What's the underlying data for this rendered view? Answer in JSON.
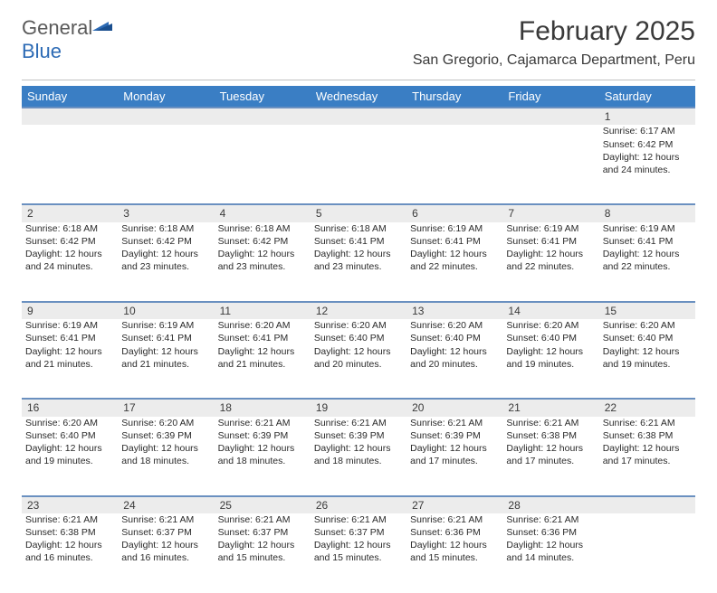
{
  "logo": {
    "text_general": "General",
    "text_blue": "Blue"
  },
  "title": "February 2025",
  "location": "San Gregorio, Cajamarca Department, Peru",
  "colors": {
    "header_bg": "#3a7ec4",
    "header_text": "#ffffff",
    "daynum_bg": "#ececec",
    "daynum_border": "#6a90c0",
    "body_text": "#2a2a2a",
    "logo_gray": "#5a5a5a",
    "logo_blue": "#2d6bb5"
  },
  "day_names": [
    "Sunday",
    "Monday",
    "Tuesday",
    "Wednesday",
    "Thursday",
    "Friday",
    "Saturday"
  ],
  "grid": [
    [
      null,
      null,
      null,
      null,
      null,
      null,
      {
        "n": "1",
        "sr": "Sunrise: 6:17 AM",
        "ss": "Sunset: 6:42 PM",
        "d1": "Daylight: 12 hours",
        "d2": "and 24 minutes."
      }
    ],
    [
      {
        "n": "2",
        "sr": "Sunrise: 6:18 AM",
        "ss": "Sunset: 6:42 PM",
        "d1": "Daylight: 12 hours",
        "d2": "and 24 minutes."
      },
      {
        "n": "3",
        "sr": "Sunrise: 6:18 AM",
        "ss": "Sunset: 6:42 PM",
        "d1": "Daylight: 12 hours",
        "d2": "and 23 minutes."
      },
      {
        "n": "4",
        "sr": "Sunrise: 6:18 AM",
        "ss": "Sunset: 6:42 PM",
        "d1": "Daylight: 12 hours",
        "d2": "and 23 minutes."
      },
      {
        "n": "5",
        "sr": "Sunrise: 6:18 AM",
        "ss": "Sunset: 6:41 PM",
        "d1": "Daylight: 12 hours",
        "d2": "and 23 minutes."
      },
      {
        "n": "6",
        "sr": "Sunrise: 6:19 AM",
        "ss": "Sunset: 6:41 PM",
        "d1": "Daylight: 12 hours",
        "d2": "and 22 minutes."
      },
      {
        "n": "7",
        "sr": "Sunrise: 6:19 AM",
        "ss": "Sunset: 6:41 PM",
        "d1": "Daylight: 12 hours",
        "d2": "and 22 minutes."
      },
      {
        "n": "8",
        "sr": "Sunrise: 6:19 AM",
        "ss": "Sunset: 6:41 PM",
        "d1": "Daylight: 12 hours",
        "d2": "and 22 minutes."
      }
    ],
    [
      {
        "n": "9",
        "sr": "Sunrise: 6:19 AM",
        "ss": "Sunset: 6:41 PM",
        "d1": "Daylight: 12 hours",
        "d2": "and 21 minutes."
      },
      {
        "n": "10",
        "sr": "Sunrise: 6:19 AM",
        "ss": "Sunset: 6:41 PM",
        "d1": "Daylight: 12 hours",
        "d2": "and 21 minutes."
      },
      {
        "n": "11",
        "sr": "Sunrise: 6:20 AM",
        "ss": "Sunset: 6:41 PM",
        "d1": "Daylight: 12 hours",
        "d2": "and 21 minutes."
      },
      {
        "n": "12",
        "sr": "Sunrise: 6:20 AM",
        "ss": "Sunset: 6:40 PM",
        "d1": "Daylight: 12 hours",
        "d2": "and 20 minutes."
      },
      {
        "n": "13",
        "sr": "Sunrise: 6:20 AM",
        "ss": "Sunset: 6:40 PM",
        "d1": "Daylight: 12 hours",
        "d2": "and 20 minutes."
      },
      {
        "n": "14",
        "sr": "Sunrise: 6:20 AM",
        "ss": "Sunset: 6:40 PM",
        "d1": "Daylight: 12 hours",
        "d2": "and 19 minutes."
      },
      {
        "n": "15",
        "sr": "Sunrise: 6:20 AM",
        "ss": "Sunset: 6:40 PM",
        "d1": "Daylight: 12 hours",
        "d2": "and 19 minutes."
      }
    ],
    [
      {
        "n": "16",
        "sr": "Sunrise: 6:20 AM",
        "ss": "Sunset: 6:40 PM",
        "d1": "Daylight: 12 hours",
        "d2": "and 19 minutes."
      },
      {
        "n": "17",
        "sr": "Sunrise: 6:20 AM",
        "ss": "Sunset: 6:39 PM",
        "d1": "Daylight: 12 hours",
        "d2": "and 18 minutes."
      },
      {
        "n": "18",
        "sr": "Sunrise: 6:21 AM",
        "ss": "Sunset: 6:39 PM",
        "d1": "Daylight: 12 hours",
        "d2": "and 18 minutes."
      },
      {
        "n": "19",
        "sr": "Sunrise: 6:21 AM",
        "ss": "Sunset: 6:39 PM",
        "d1": "Daylight: 12 hours",
        "d2": "and 18 minutes."
      },
      {
        "n": "20",
        "sr": "Sunrise: 6:21 AM",
        "ss": "Sunset: 6:39 PM",
        "d1": "Daylight: 12 hours",
        "d2": "and 17 minutes."
      },
      {
        "n": "21",
        "sr": "Sunrise: 6:21 AM",
        "ss": "Sunset: 6:38 PM",
        "d1": "Daylight: 12 hours",
        "d2": "and 17 minutes."
      },
      {
        "n": "22",
        "sr": "Sunrise: 6:21 AM",
        "ss": "Sunset: 6:38 PM",
        "d1": "Daylight: 12 hours",
        "d2": "and 17 minutes."
      }
    ],
    [
      {
        "n": "23",
        "sr": "Sunrise: 6:21 AM",
        "ss": "Sunset: 6:38 PM",
        "d1": "Daylight: 12 hours",
        "d2": "and 16 minutes."
      },
      {
        "n": "24",
        "sr": "Sunrise: 6:21 AM",
        "ss": "Sunset: 6:37 PM",
        "d1": "Daylight: 12 hours",
        "d2": "and 16 minutes."
      },
      {
        "n": "25",
        "sr": "Sunrise: 6:21 AM",
        "ss": "Sunset: 6:37 PM",
        "d1": "Daylight: 12 hours",
        "d2": "and 15 minutes."
      },
      {
        "n": "26",
        "sr": "Sunrise: 6:21 AM",
        "ss": "Sunset: 6:37 PM",
        "d1": "Daylight: 12 hours",
        "d2": "and 15 minutes."
      },
      {
        "n": "27",
        "sr": "Sunrise: 6:21 AM",
        "ss": "Sunset: 6:36 PM",
        "d1": "Daylight: 12 hours",
        "d2": "and 15 minutes."
      },
      {
        "n": "28",
        "sr": "Sunrise: 6:21 AM",
        "ss": "Sunset: 6:36 PM",
        "d1": "Daylight: 12 hours",
        "d2": "and 14 minutes."
      },
      null
    ]
  ]
}
